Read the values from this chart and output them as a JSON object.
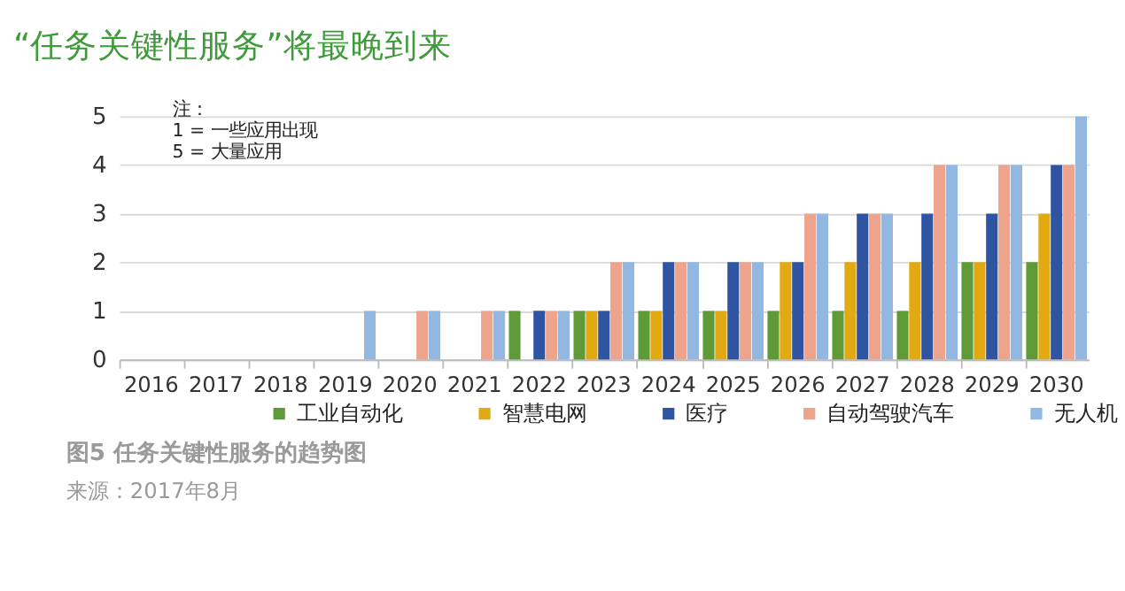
{
  "chart_data": {
    "type": "bar",
    "title": "“任务关键性服务”将最晚到来",
    "categories": [
      "2016",
      "2017",
      "2018",
      "2019",
      "2020",
      "2021",
      "2022",
      "2023",
      "2024",
      "2025",
      "2026",
      "2027",
      "2028",
      "2029",
      "2030"
    ],
    "series": [
      {
        "name": "工业自动化",
        "color": "#5e9a35",
        "values": [
          0,
          0,
          0,
          0,
          0,
          0,
          1,
          1,
          1,
          1,
          1,
          1,
          1,
          2,
          2
        ]
      },
      {
        "name": "智慧电网",
        "color": "#e3a912",
        "values": [
          0,
          0,
          0,
          0,
          0,
          0,
          0,
          1,
          1,
          1,
          2,
          2,
          2,
          2,
          3
        ]
      },
      {
        "name": "医疗",
        "color": "#2f54a1",
        "values": [
          0,
          0,
          0,
          0,
          0,
          0,
          1,
          1,
          2,
          2,
          2,
          3,
          3,
          3,
          4
        ]
      },
      {
        "name": "自动驾驶汽车",
        "color": "#eea48c",
        "values": [
          0,
          0,
          0,
          0,
          1,
          1,
          1,
          2,
          2,
          2,
          3,
          3,
          4,
          4,
          4
        ]
      },
      {
        "name": "无人机",
        "color": "#92b8e2",
        "values": [
          0,
          0,
          0,
          1,
          1,
          1,
          1,
          2,
          2,
          2,
          3,
          3,
          4,
          4,
          5
        ]
      }
    ],
    "ylim": [
      0,
      5
    ],
    "yticks": [
      0,
      1,
      2,
      3,
      4,
      5
    ],
    "grid": "y",
    "legend": "bottom",
    "annotations": [
      "注：\n1 = 一些应用出现\n5 = 大量应用",
      "图5  任务关键性服务的趋势图",
      "来源：2017年8月"
    ]
  }
}
